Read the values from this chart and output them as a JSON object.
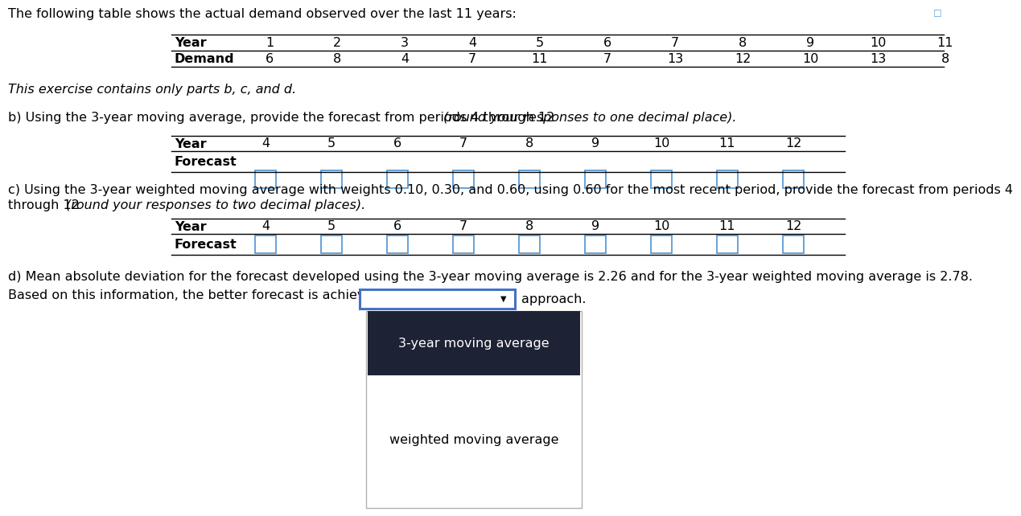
{
  "title_text": "The following table shows the actual demand observed over the last 11 years:",
  "demand_years": [
    "1",
    "2",
    "3",
    "4",
    "5",
    "6",
    "7",
    "8",
    "9",
    "10",
    "11"
  ],
  "demand_values": [
    "6",
    "8",
    "4",
    "7",
    "11",
    "7",
    "13",
    "12",
    "10",
    "13",
    "8"
  ],
  "italic_note": "This exercise contains only parts b, c, and d.",
  "b_text_normal": "b) Using the 3-year moving average, provide the forecast from periods 4 through 12 ",
  "b_text_italic": "(round your responses to one decimal place)",
  "b_text_end": ".",
  "forecast_years": [
    "4",
    "5",
    "6",
    "7",
    "8",
    "9",
    "10",
    "11",
    "12"
  ],
  "c_text_normal1": "c) Using the 3-year weighted moving average with weights 0.10, 0.30, and 0.60, using 0.60 for the most recent period, provide the forecast from periods 4",
  "c_text_normal2": "through 12 ",
  "c_text_italic": "(round your responses to two decimal places)",
  "c_text_end": ".",
  "d_text1": "d) Mean absolute deviation for the forecast developed using the 3-year moving average is 2.26 and for the 3-year weighted moving average is 2.78.",
  "d_text2": "Based on this information, the better forecast is achieved using the",
  "d_text_end": "approach.",
  "dropdown_option1": "3-year moving average",
  "dropdown_option2": "weighted moving average",
  "bg_color": "#ffffff",
  "box_stroke": "#5b9bd5",
  "dropdown_border": "#4472c4",
  "dark_bg": "#1e2235",
  "text_color": "#000000",
  "row_label_color": "#000000",
  "icon_color": "#5b9bd5"
}
